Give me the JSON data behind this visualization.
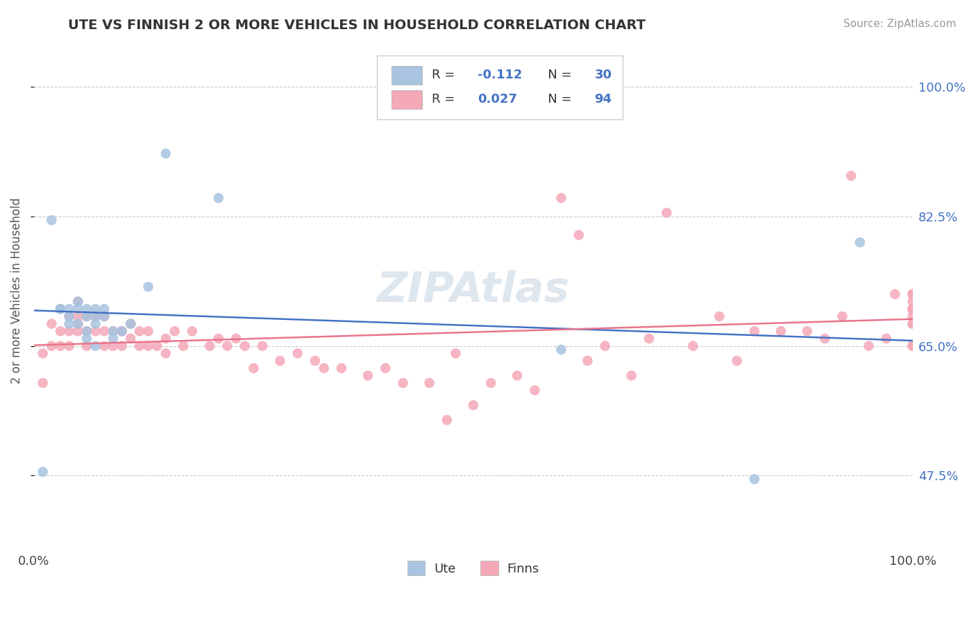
{
  "title": "UTE VS FINNISH 2 OR MORE VEHICLES IN HOUSEHOLD CORRELATION CHART",
  "source": "Source: ZipAtlas.com",
  "ylabel": "2 or more Vehicles in Household",
  "ytick_labels": [
    "47.5%",
    "65.0%",
    "82.5%",
    "100.0%"
  ],
  "ytick_values": [
    0.475,
    0.65,
    0.825,
    1.0
  ],
  "legend_labels": [
    "Ute",
    "Finns"
  ],
  "ute_R": -0.112,
  "ute_N": 30,
  "finns_R": 0.027,
  "finns_N": 94,
  "ute_color": "#a8c4e0",
  "finns_color": "#f4a8b8",
  "ute_line_color": "#4472c4",
  "finns_line_color": "#e8748a",
  "background_color": "#ffffff",
  "grid_color": "#c8c8c8",
  "watermark_color": "#d0dce8",
  "ylim_low": 0.38,
  "ylim_high": 1.07,
  "ute_x": [
    0.01,
    0.02,
    0.03,
    0.03,
    0.04,
    0.04,
    0.04,
    0.05,
    0.05,
    0.05,
    0.06,
    0.06,
    0.06,
    0.06,
    0.07,
    0.07,
    0.07,
    0.07,
    0.08,
    0.08,
    0.09,
    0.09,
    0.1,
    0.11,
    0.13,
    0.15,
    0.21,
    0.6,
    0.82,
    0.94
  ],
  "ute_y": [
    0.48,
    0.82,
    0.7,
    0.7,
    0.7,
    0.69,
    0.68,
    0.71,
    0.7,
    0.68,
    0.7,
    0.69,
    0.67,
    0.66,
    0.7,
    0.69,
    0.68,
    0.65,
    0.7,
    0.69,
    0.67,
    0.66,
    0.67,
    0.68,
    0.73,
    0.91,
    0.85,
    0.645,
    0.47,
    0.79
  ],
  "finns_x": [
    0.01,
    0.01,
    0.02,
    0.02,
    0.03,
    0.03,
    0.03,
    0.04,
    0.04,
    0.04,
    0.05,
    0.05,
    0.05,
    0.05,
    0.06,
    0.06,
    0.06,
    0.07,
    0.07,
    0.08,
    0.08,
    0.08,
    0.09,
    0.09,
    0.1,
    0.1,
    0.1,
    0.11,
    0.11,
    0.12,
    0.12,
    0.13,
    0.13,
    0.14,
    0.15,
    0.15,
    0.16,
    0.17,
    0.18,
    0.2,
    0.21,
    0.22,
    0.23,
    0.24,
    0.25,
    0.26,
    0.28,
    0.3,
    0.32,
    0.33,
    0.35,
    0.38,
    0.4,
    0.42,
    0.45,
    0.47,
    0.48,
    0.5,
    0.52,
    0.55,
    0.57,
    0.6,
    0.62,
    0.63,
    0.65,
    0.68,
    0.7,
    0.72,
    0.75,
    0.78,
    0.8,
    0.82,
    0.85,
    0.88,
    0.9,
    0.92,
    0.93,
    0.95,
    0.97,
    0.98,
    1.0,
    1.0,
    1.0,
    1.0,
    1.0,
    1.0,
    1.0,
    1.0,
    1.0,
    1.0,
    1.0,
    1.0,
    1.0,
    1.0
  ],
  "finns_y": [
    0.6,
    0.64,
    0.65,
    0.68,
    0.65,
    0.67,
    0.7,
    0.65,
    0.67,
    0.69,
    0.67,
    0.68,
    0.69,
    0.71,
    0.65,
    0.67,
    0.69,
    0.67,
    0.69,
    0.65,
    0.67,
    0.69,
    0.67,
    0.65,
    0.67,
    0.65,
    0.67,
    0.66,
    0.68,
    0.65,
    0.67,
    0.65,
    0.67,
    0.65,
    0.66,
    0.64,
    0.67,
    0.65,
    0.67,
    0.65,
    0.66,
    0.65,
    0.66,
    0.65,
    0.62,
    0.65,
    0.63,
    0.64,
    0.63,
    0.62,
    0.62,
    0.61,
    0.62,
    0.6,
    0.6,
    0.55,
    0.64,
    0.57,
    0.6,
    0.61,
    0.59,
    0.85,
    0.8,
    0.63,
    0.65,
    0.61,
    0.66,
    0.83,
    0.65,
    0.69,
    0.63,
    0.67,
    0.67,
    0.67,
    0.66,
    0.69,
    0.88,
    0.65,
    0.66,
    0.72,
    0.68,
    0.69,
    0.7,
    0.72,
    0.68,
    0.7,
    0.65,
    0.7,
    0.7,
    0.72,
    0.7,
    0.72,
    0.71,
    0.65
  ]
}
